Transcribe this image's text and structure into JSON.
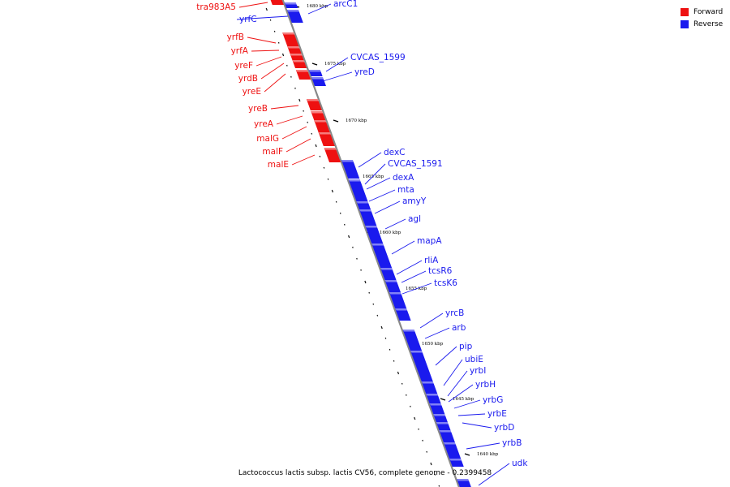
{
  "legend": {
    "forward_label": "Forward",
    "reverse_label": "Reverse",
    "forward_color": "#ee1111",
    "reverse_color": "#1a1aee"
  },
  "caption": "Lactococcus lactis subsp. lactis CV56, complete genome - 0.2399458",
  "ruler": [
    {
      "text": "1680 kbp",
      "kbp": 1680
    },
    {
      "text": "1675 kbp",
      "kbp": 1675
    },
    {
      "text": "1670 kbp",
      "kbp": 1670
    },
    {
      "text": "1665 kbp",
      "kbp": 1665
    },
    {
      "text": "1660 kbp",
      "kbp": 1660
    },
    {
      "text": "1655 kbp",
      "kbp": 1655
    },
    {
      "text": "1650 kbp",
      "kbp": 1650
    },
    {
      "text": "1645 kbp",
      "kbp": 1645
    },
    {
      "text": "1640 kbp",
      "kbp": 1640
    }
  ],
  "genes": [
    {
      "name": "tra983A5",
      "strand": "forward"
    },
    {
      "name": "arcC1",
      "strand": "reverse"
    },
    {
      "name": "yrfC",
      "strand": "reverse"
    },
    {
      "name": "yrfB",
      "strand": "forward"
    },
    {
      "name": "yrfA",
      "strand": "forward"
    },
    {
      "name": "yreF",
      "strand": "forward"
    },
    {
      "name": "yrdB",
      "strand": "forward"
    },
    {
      "name": "yreE",
      "strand": "forward"
    },
    {
      "name": "CVCAS_1599",
      "strand": "reverse"
    },
    {
      "name": "yreD",
      "strand": "reverse"
    },
    {
      "name": "yreB",
      "strand": "forward"
    },
    {
      "name": "yreA",
      "strand": "forward"
    },
    {
      "name": "malG",
      "strand": "forward"
    },
    {
      "name": "malF",
      "strand": "forward"
    },
    {
      "name": "malE",
      "strand": "forward"
    },
    {
      "name": "dexC",
      "strand": "reverse"
    },
    {
      "name": "CVCAS_1591",
      "strand": "reverse"
    },
    {
      "name": "dexA",
      "strand": "reverse"
    },
    {
      "name": "mta",
      "strand": "reverse"
    },
    {
      "name": "amyY",
      "strand": "reverse"
    },
    {
      "name": "agl",
      "strand": "reverse"
    },
    {
      "name": "mapA",
      "strand": "reverse"
    },
    {
      "name": "rliA",
      "strand": "reverse"
    },
    {
      "name": "tcsR6",
      "strand": "reverse"
    },
    {
      "name": "tcsK6",
      "strand": "reverse"
    },
    {
      "name": "yrcB",
      "strand": "reverse"
    },
    {
      "name": "arb",
      "strand": "reverse"
    },
    {
      "name": "pip",
      "strand": "reverse"
    },
    {
      "name": "ubiE",
      "strand": "reverse"
    },
    {
      "name": "yrbI",
      "strand": "reverse"
    },
    {
      "name": "yrbH",
      "strand": "reverse"
    },
    {
      "name": "yrbG",
      "strand": "reverse"
    },
    {
      "name": "yrbE",
      "strand": "reverse"
    },
    {
      "name": "yrbD",
      "strand": "reverse"
    },
    {
      "name": "yrbB",
      "strand": "reverse"
    },
    {
      "name": "udk",
      "strand": "reverse"
    }
  ]
}
